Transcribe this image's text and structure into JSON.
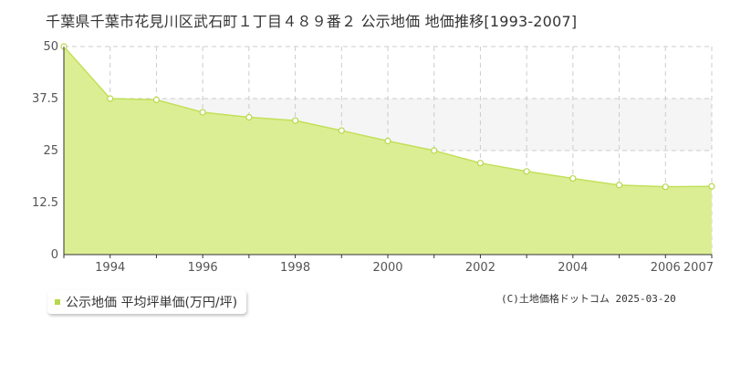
{
  "title": "千葉県千葉市花見川区武石町１丁目４８９番２ 公示地価 地価推移[1993-2007]",
  "legend_label": "公示地価 平均坪単価(万円/坪)",
  "credit": "(C)土地価格ドットコム 2025-03-20",
  "colors": {
    "fill": "#dcee93",
    "line": "#c2e05a",
    "marker_stroke": "#b7d84a",
    "grid": "#cccccc",
    "axis": "#333333",
    "band": "#f5f5f5"
  },
  "chart_data": {
    "type": "area",
    "x": [
      1993,
      1994,
      1995,
      1996,
      1997,
      1998,
      1999,
      2000,
      2001,
      2002,
      2003,
      2004,
      2005,
      2006,
      2007
    ],
    "series": [
      {
        "name": "公示地価 平均坪単価(万円/坪)",
        "values": [
          50.0,
          37.5,
          37.2,
          34.2,
          33.0,
          32.2,
          29.8,
          27.3,
          25.0,
          22.0,
          20.0,
          18.3,
          16.7,
          16.3,
          16.4
        ]
      }
    ],
    "x_tick_labels": [
      "1994",
      "1996",
      "1998",
      "2000",
      "2002",
      "2004",
      "2006",
      "2007"
    ],
    "y_tick_labels": [
      "0",
      "12.5",
      "25",
      "37.5",
      "50"
    ],
    "xlim": [
      1993,
      2007
    ],
    "ylim": [
      0,
      50
    ],
    "grid": true,
    "legend_position": "bottom-left"
  }
}
